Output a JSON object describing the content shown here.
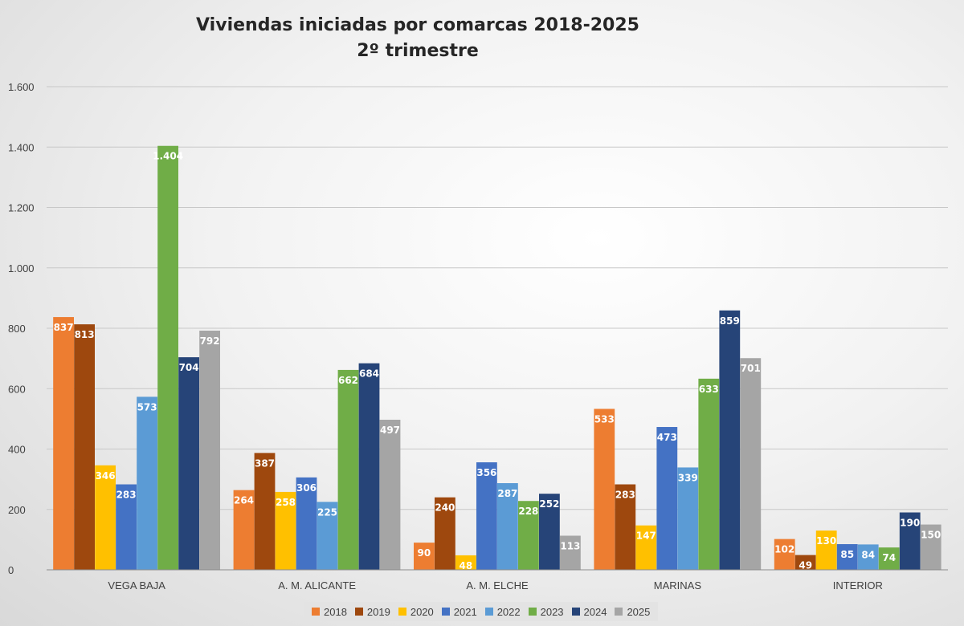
{
  "chart_data": {
    "type": "bar",
    "title": "Viviendas iniciadas por comarcas 2018-2025",
    "subtitle": "2º trimestre",
    "categories": [
      "VEGA BAJA",
      "A. M. ALICANTE",
      "A. M. ELCHE",
      "MARINAS",
      "INTERIOR"
    ],
    "series": [
      {
        "name": "2018",
        "color": "#ED7D31",
        "values": [
          837,
          264,
          90,
          533,
          102
        ]
      },
      {
        "name": "2019",
        "color": "#9E480E",
        "values": [
          813,
          387,
          240,
          283,
          49
        ]
      },
      {
        "name": "2020",
        "color": "#FFC000",
        "values": [
          346,
          258,
          48,
          147,
          130
        ]
      },
      {
        "name": "2021",
        "color": "#4472C4",
        "values": [
          283,
          306,
          356,
          473,
          85
        ]
      },
      {
        "name": "2022",
        "color": "#5B9BD5",
        "values": [
          573,
          225,
          287,
          339,
          84
        ]
      },
      {
        "name": "2023",
        "color": "#70AD47",
        "values": [
          1404,
          662,
          228,
          633,
          74
        ]
      },
      {
        "name": "2024",
        "color": "#264478",
        "values": [
          704,
          684,
          252,
          859,
          190
        ]
      },
      {
        "name": "2025",
        "color": "#A5A5A5",
        "values": [
          792,
          497,
          113,
          701,
          150
        ]
      }
    ],
    "ylim": [
      0,
      1600
    ],
    "yticks": [
      0,
      200,
      400,
      600,
      800,
      1000,
      1200,
      1400,
      1600
    ],
    "ytick_labels": [
      "0",
      "200",
      "400",
      "600",
      "800",
      "1.000",
      "1.200",
      "1.400",
      "1.600"
    ],
    "data_labels": [
      [
        "837",
        "264",
        "90",
        "533",
        "102"
      ],
      [
        "813",
        "387",
        "240",
        "283",
        "49"
      ],
      [
        "346",
        "258",
        "48",
        "147",
        "130"
      ],
      [
        "283",
        "306",
        "356",
        "473",
        "85"
      ],
      [
        "573",
        "225",
        "287",
        "339",
        "84"
      ],
      [
        "1.404",
        "662",
        "228",
        "633",
        "74"
      ],
      [
        "704",
        "684",
        "252",
        "859",
        "190"
      ],
      [
        "792",
        "497",
        "113",
        "701",
        "150"
      ]
    ],
    "grid": true,
    "legend_position": "bottom"
  }
}
